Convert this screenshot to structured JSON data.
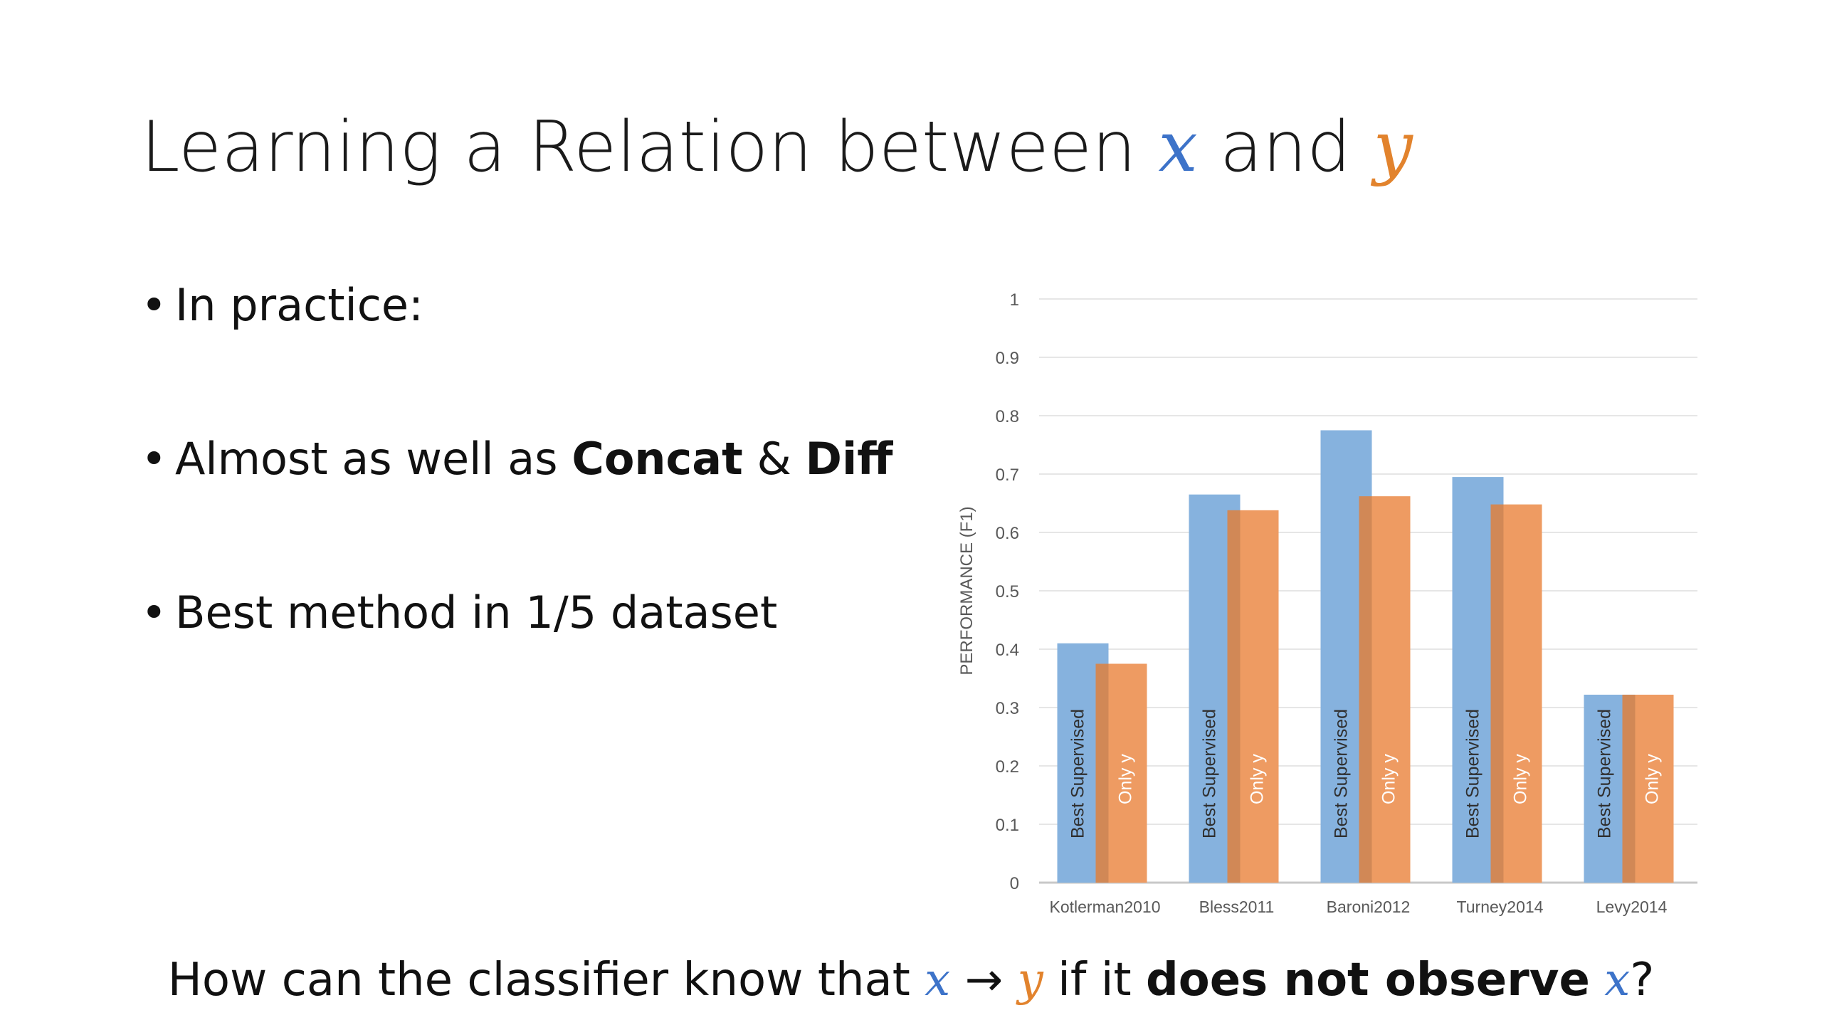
{
  "slide": {
    "title_prefix": "Learning a Relation between ",
    "title_x": "x",
    "title_mid": " and ",
    "title_y": "y",
    "bullets": [
      {
        "text": "In practice:"
      },
      {
        "pre": "Almost as well as ",
        "b1": "Concat",
        "mid": " & ",
        "b2": "Diff"
      },
      {
        "text": "Best method in 1/5 dataset"
      }
    ],
    "question": {
      "pre": "How can the classifier know that ",
      "x": "x",
      "arrow": " → ",
      "y": "y",
      "mid": " if it ",
      "bold": "does not observe",
      "x2": "x",
      "end": "?"
    }
  },
  "chart_data": {
    "type": "bar",
    "ylabel": "PERFORMANCE (F1)",
    "ylim": [
      0,
      1
    ],
    "yticks": [
      "0",
      "0.1",
      "0.2",
      "0.3",
      "0.4",
      "0.5",
      "0.6",
      "0.7",
      "0.8",
      "0.9",
      "1"
    ],
    "categories": [
      "Kotlerman2010",
      "Bless2011",
      "Baroni2012",
      "Turney2014",
      "Levy2014"
    ],
    "series": [
      {
        "name": "Best Supervised",
        "values": [
          0.41,
          0.665,
          0.775,
          0.695,
          0.322
        ],
        "color": "#86b2de"
      },
      {
        "name": "Only y",
        "values": [
          0.375,
          0.638,
          0.662,
          0.648,
          0.322
        ],
        "color": "#ee9b62"
      }
    ],
    "grid": true
  }
}
